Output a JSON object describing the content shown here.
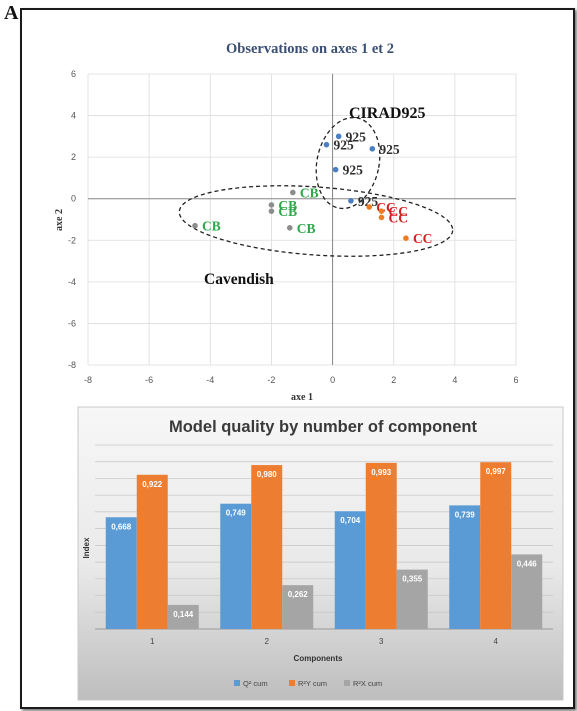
{
  "panel_label": "A",
  "chart_data": [
    {
      "type": "scatter",
      "title": "Observations on axes 1 et 2",
      "xlabel": "axe 1",
      "ylabel": "axe 2",
      "xlim": [
        -8,
        6
      ],
      "ylim": [
        -8,
        6
      ],
      "xticks": [
        "-8",
        "-6",
        "-4",
        "-2",
        "0",
        "2",
        "4",
        "6"
      ],
      "yticks": [
        "6",
        "4",
        "2",
        "0",
        "-2",
        "-4",
        "-6",
        "-8"
      ],
      "grid": true,
      "groups": [
        {
          "name": "CIRAD925",
          "color": "#4a7fc1",
          "label_color": "#2f2f2f",
          "points": [
            [
              0.2,
              3.0
            ],
            [
              -0.2,
              2.6
            ],
            [
              1.3,
              2.4
            ],
            [
              0.1,
              1.4
            ],
            [
              0.6,
              -0.1
            ]
          ],
          "point_labels": [
            "925",
            "925",
            "925",
            "925",
            "925"
          ]
        },
        {
          "name": "CB",
          "color": "#8c8c8c",
          "label_color": "#2ea84a",
          "points": [
            [
              -4.5,
              -1.3
            ],
            [
              -2.0,
              -0.3
            ],
            [
              -2.0,
              -0.6
            ],
            [
              -1.4,
              -1.4
            ],
            [
              -1.3,
              0.3
            ]
          ],
          "point_labels": [
            "CB",
            "CB",
            "CB",
            "CB",
            "CB"
          ]
        },
        {
          "name": "CC",
          "color": "#ee7d22",
          "label_color": "#d42020",
          "points": [
            [
              1.2,
              -0.4
            ],
            [
              1.6,
              -0.6
            ],
            [
              1.6,
              -0.9
            ],
            [
              2.4,
              -1.9
            ]
          ],
          "point_labels": [
            "CC",
            "CC",
            "CC",
            "CC"
          ]
        }
      ],
      "annotations": [
        "CIRAD925",
        "Cavendish"
      ]
    },
    {
      "type": "bar",
      "title": "Model quality by number of component",
      "xlabel": "Components",
      "ylabel": "Index",
      "categories": [
        "1",
        "2",
        "3",
        "4"
      ],
      "ylim": [
        0,
        1.1
      ],
      "legend_position": "bottom",
      "series": [
        {
          "name": "Q² cum",
          "color": "#5b9bd5",
          "values": [
            0.668,
            0.749,
            0.704,
            0.739
          ],
          "labels": [
            "0,668",
            "0,749",
            "0,704",
            "0,739"
          ]
        },
        {
          "name": "R²Y cum",
          "color": "#ed7d31",
          "values": [
            0.922,
            0.98,
            0.993,
            0.997
          ],
          "labels": [
            "0,922",
            "0,980",
            "0,993",
            "0,997"
          ]
        },
        {
          "name": "R²X cum",
          "color": "#a5a5a5",
          "values": [
            0.144,
            0.262,
            0.355,
            0.446
          ],
          "labels": [
            "0,144",
            "0,262",
            "0,355",
            "0,446"
          ]
        }
      ]
    }
  ]
}
